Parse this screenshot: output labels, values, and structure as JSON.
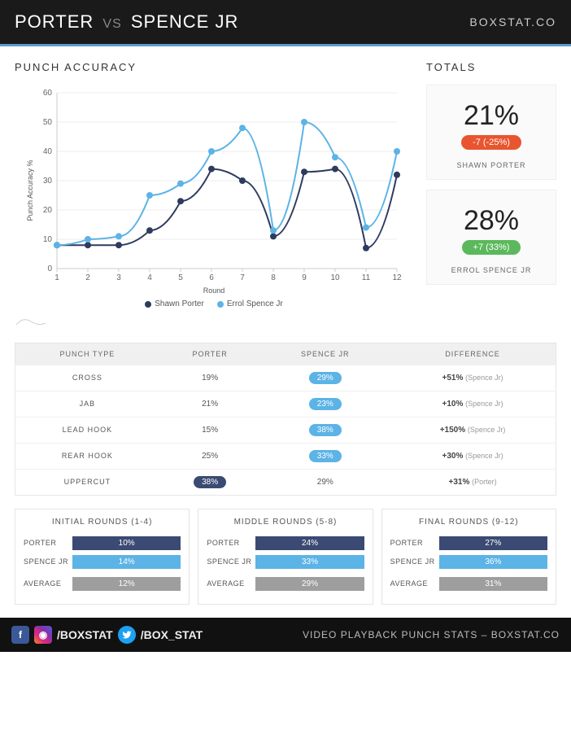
{
  "header": {
    "fighter1": "PORTER",
    "vs": "VS",
    "fighter2": "SPENCE JR",
    "brand": "BOXSTAT.CO"
  },
  "chart": {
    "title": "PUNCH ACCURACY",
    "type": "line",
    "xlabel": "Round",
    "ylabel": "Punch Accuracy %",
    "xlim": [
      1,
      12
    ],
    "ylim": [
      0,
      60
    ],
    "ytick_step": 10,
    "grid_color": "#eeeeee",
    "background_color": "#ffffff",
    "marker": "circle",
    "marker_size": 4,
    "line_width": 2,
    "series": [
      {
        "name": "Shawn Porter",
        "color": "#2e3b5e",
        "values": [
          8,
          8,
          8,
          13,
          23,
          34,
          30,
          11,
          33,
          34,
          7,
          32
        ]
      },
      {
        "name": "Errol Spence Jr",
        "color": "#5cb3e6",
        "values": [
          8,
          10,
          11,
          25,
          29,
          40,
          48,
          13,
          50,
          38,
          14,
          40
        ]
      }
    ],
    "rounds": [
      1,
      2,
      3,
      4,
      5,
      6,
      7,
      8,
      9,
      10,
      11,
      12
    ]
  },
  "totals": {
    "title": "TOTALS",
    "cards": [
      {
        "pct": "21%",
        "delta": "-7 (-25%)",
        "badge_color": "#e8552f",
        "name": "SHAWN PORTER"
      },
      {
        "pct": "28%",
        "delta": "+7 (33%)",
        "badge_color": "#5cb85c",
        "name": "ERROL SPENCE JR"
      }
    ]
  },
  "table": {
    "columns": [
      "PUNCH TYPE",
      "PORTER",
      "SPENCE JR",
      "DIFFERENCE"
    ],
    "colors": {
      "porter": "#3b4a73",
      "spence": "#5cb3e6"
    },
    "rows": [
      {
        "type": "CROSS",
        "porter": "19%",
        "spence": "29%",
        "winner": "spence",
        "diff": "+51%",
        "diffname": "(Spence Jr)"
      },
      {
        "type": "JAB",
        "porter": "21%",
        "spence": "23%",
        "winner": "spence",
        "diff": "+10%",
        "diffname": "(Spence Jr)"
      },
      {
        "type": "LEAD HOOK",
        "porter": "15%",
        "spence": "38%",
        "winner": "spence",
        "diff": "+150%",
        "diffname": "(Spence Jr)"
      },
      {
        "type": "REAR HOOK",
        "porter": "25%",
        "spence": "33%",
        "winner": "spence",
        "diff": "+30%",
        "diffname": "(Spence Jr)"
      },
      {
        "type": "UPPERCUT",
        "porter": "38%",
        "spence": "29%",
        "winner": "porter",
        "diff": "+31%",
        "diffname": "(Porter)"
      }
    ]
  },
  "roundSegments": {
    "colors": {
      "porter": "#3b4a73",
      "spence": "#5cb3e6",
      "average": "#9e9e9e"
    },
    "cards": [
      {
        "title": "INITIAL ROUNDS (1-4)",
        "porter": "10%",
        "spence": "14%",
        "average": "12%"
      },
      {
        "title": "MIDDLE ROUNDS (5-8)",
        "porter": "24%",
        "spence": "33%",
        "average": "29%"
      },
      {
        "title": "FINAL ROUNDS (9-12)",
        "porter": "27%",
        "spence": "36%",
        "average": "31%"
      }
    ],
    "labels": {
      "porter": "PORTER",
      "spence": "SPENCE JR",
      "average": "AVERAGE"
    }
  },
  "footer": {
    "handle1": "/BOXSTAT",
    "handle2": "/BOX_STAT",
    "tagline": "VIDEO PLAYBACK PUNCH STATS – BOXSTAT.CO"
  }
}
